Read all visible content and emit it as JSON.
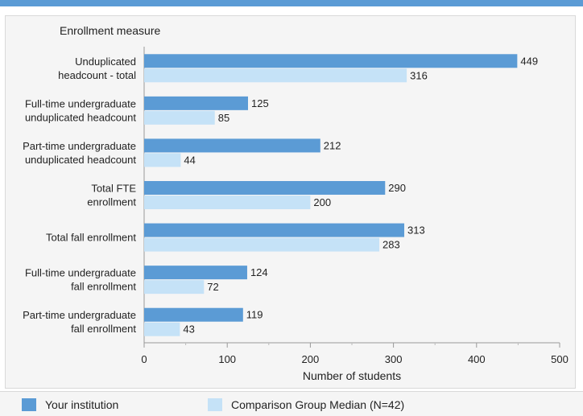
{
  "chart_data": {
    "type": "bar",
    "orientation": "horizontal",
    "y_axis_title": "Enrollment measure",
    "xlabel": "Number of students",
    "xlim": [
      0,
      500
    ],
    "xticks": [
      0,
      100,
      200,
      300,
      400,
      500
    ],
    "grid": false,
    "categories": [
      [
        "Unduplicated",
        "headcount - total"
      ],
      [
        "Full-time undergraduate",
        "unduplicated headcount"
      ],
      [
        "Part-time undergraduate",
        "unduplicated headcount"
      ],
      [
        "Total FTE",
        "enrollment"
      ],
      [
        "Total fall enrollment"
      ],
      [
        "Full-time undergraduate",
        "fall enrollment"
      ],
      [
        "Part-time undergraduate",
        "fall enrollment"
      ]
    ],
    "series": [
      {
        "name": "Your institution",
        "color": "#5b9bd5",
        "values": [
          449,
          125,
          212,
          290,
          313,
          124,
          119
        ]
      },
      {
        "name": "Comparison Group Median (N=42)",
        "color": "#c5e2f7",
        "values": [
          316,
          85,
          44,
          200,
          283,
          72,
          43
        ]
      }
    ],
    "legend_position": "bottom"
  }
}
